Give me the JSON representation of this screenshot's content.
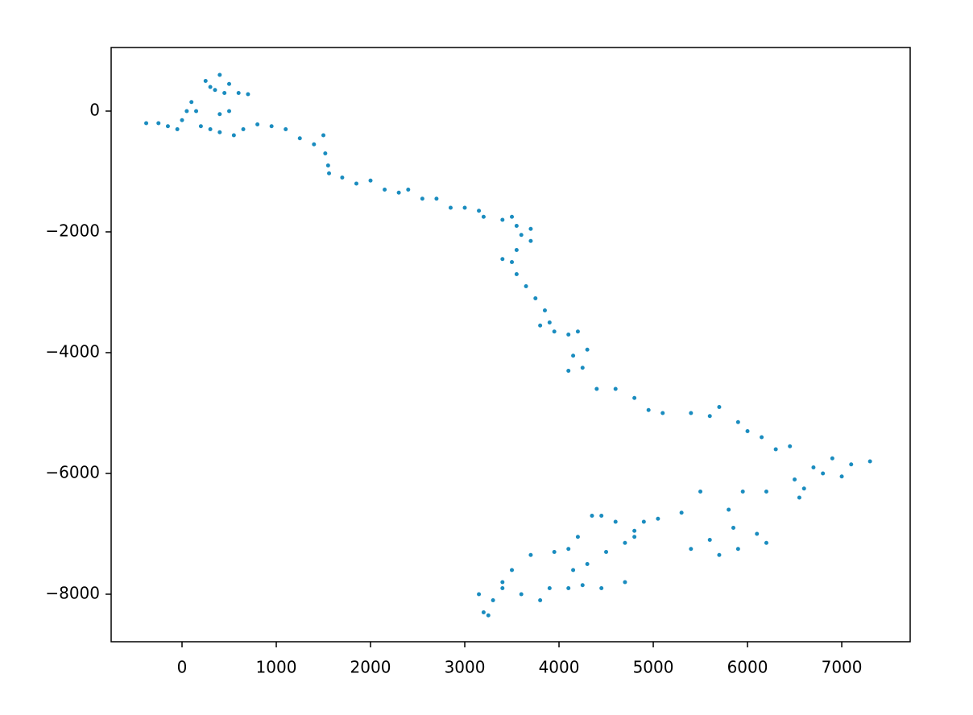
{
  "chart_data": {
    "type": "scatter",
    "color": "#1a8cbf",
    "x": [
      -380,
      -250,
      -150,
      -50,
      0,
      50,
      100,
      150,
      200,
      250,
      300,
      350,
      400,
      450,
      500,
      600,
      700,
      500,
      400,
      300,
      400,
      550,
      650,
      800,
      950,
      1100,
      1250,
      1400,
      1500,
      1520,
      1550,
      1560,
      1700,
      1850,
      2000,
      2150,
      2300,
      2400,
      2550,
      2700,
      2850,
      3000,
      3150,
      3200,
      3400,
      3500,
      3550,
      3700,
      3600,
      3700,
      3550,
      3400,
      3500,
      3550,
      3650,
      3750,
      3850,
      3900,
      3800,
      3950,
      4100,
      4200,
      4300,
      4150,
      4100,
      4250,
      4400,
      4600,
      4800,
      4950,
      5100,
      5400,
      5600,
      5700,
      5900,
      6000,
      6150,
      6300,
      6450,
      6500,
      6600,
      6700,
      6800,
      6900,
      7100,
      7300,
      7000,
      6550,
      6200,
      5950,
      5500,
      5800,
      5850,
      6100,
      6200,
      5900,
      5700,
      5400,
      5600,
      5300,
      5050,
      4900,
      4800,
      4600,
      4450,
      4350,
      4200,
      4100,
      3950,
      3700,
      3500,
      3400,
      3300,
      3200,
      3250,
      3150,
      3400,
      3600,
      3800,
      3900,
      4100,
      4250,
      4450,
      4700,
      4300,
      4150,
      4500,
      4800,
      4700
    ],
    "y": [
      -200,
      -200,
      -250,
      -300,
      -150,
      0,
      150,
      0,
      -250,
      500,
      400,
      350,
      600,
      300,
      450,
      300,
      280,
      0,
      -50,
      -300,
      -350,
      -400,
      -300,
      -220,
      -250,
      -300,
      -450,
      -550,
      -400,
      -700,
      -900,
      -1030,
      -1100,
      -1200,
      -1150,
      -1300,
      -1350,
      -1300,
      -1450,
      -1450,
      -1600,
      -1600,
      -1650,
      -1750,
      -1800,
      -1750,
      -1900,
      -1950,
      -2050,
      -2150,
      -2300,
      -2450,
      -2500,
      -2700,
      -2900,
      -3100,
      -3300,
      -3500,
      -3550,
      -3650,
      -3700,
      -3650,
      -3950,
      -4050,
      -4300,
      -4250,
      -4600,
      -4600,
      -4750,
      -4950,
      -5000,
      -5000,
      -5050,
      -4900,
      -5150,
      -5300,
      -5400,
      -5600,
      -5550,
      -6100,
      -6250,
      -5900,
      -6000,
      -5750,
      -5850,
      -5800,
      -6050,
      -6400,
      -6300,
      -6300,
      -6300,
      -6600,
      -6900,
      -7000,
      -7150,
      -7250,
      -7350,
      -7250,
      -7100,
      -6650,
      -6750,
      -6800,
      -6950,
      -6800,
      -6700,
      -6700,
      -7050,
      -7250,
      -7300,
      -7350,
      -7600,
      -7800,
      -8100,
      -8300,
      -8350,
      -8000,
      -7900,
      -8000,
      -8100,
      -7900,
      -7900,
      -7850,
      -7900,
      -7800,
      -7500,
      -7600,
      -7300,
      -7050,
      -7150
    ],
    "xlim": [
      -752,
      7726
    ],
    "ylim": [
      -8787,
      1053
    ],
    "xticks": [
      0,
      1000,
      2000,
      3000,
      4000,
      5000,
      6000,
      7000
    ],
    "yticks": [
      {
        "value": -8000,
        "label": "−8000"
      },
      {
        "value": -6000,
        "label": "−6000"
      },
      {
        "value": -4000,
        "label": "−4000"
      },
      {
        "value": -2000,
        "label": "−2000"
      },
      0
    ]
  }
}
